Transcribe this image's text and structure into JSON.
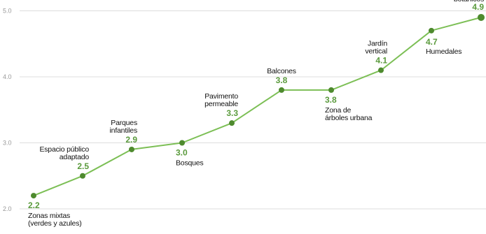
{
  "chart_data": {
    "type": "line",
    "title": "",
    "xlabel": "",
    "ylabel": "",
    "ylim": [
      2.0,
      5.0
    ],
    "yticks": [
      "2.0",
      "3.0",
      "4.0",
      "5.0"
    ],
    "grid": true,
    "colors": {
      "line": "#7cbf55",
      "marker": "#4e8a2e",
      "value_label": "#5a9a3c",
      "grid": "#dddddd"
    },
    "categories": [
      "Zonas mixtas (verdes y azules)",
      "Espacio público adaptado",
      "Parques infantiles",
      "Bosques",
      "Pavimento permeable",
      "Balcones",
      "Zona de árboles urbana",
      "Jardín vertical",
      "Humedales",
      "botánicos"
    ],
    "label_lines": [
      [
        "Zonas mixtas",
        "(verdes y azules)"
      ],
      [
        "Espacio público",
        "adaptado"
      ],
      [
        "Parques",
        "infantiles"
      ],
      [
        "Bosques"
      ],
      [
        "Pavimento",
        "permeable"
      ],
      [
        "Balcones"
      ],
      [
        "Zona de",
        "árboles urbana"
      ],
      [
        "Jardín",
        "vertical"
      ],
      [
        "Humedales"
      ],
      [
        "botánicos"
      ]
    ],
    "values": [
      2.2,
      2.5,
      2.9,
      3.0,
      3.3,
      3.8,
      3.8,
      4.1,
      4.7,
      4.9
    ],
    "value_labels": [
      "2.2",
      "2.5",
      "2.9",
      "3.0",
      "3.3",
      "3.8",
      "3.8",
      "4.1",
      "4.7",
      "4.9"
    ]
  }
}
